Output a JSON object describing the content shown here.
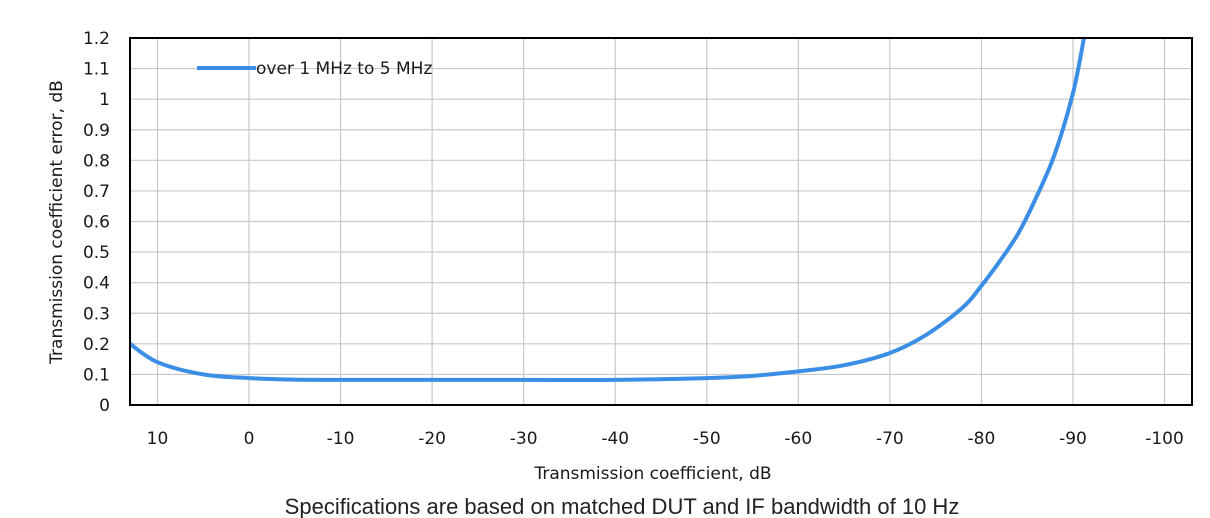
{
  "chart_data": {
    "type": "line",
    "xlabel": "Transmission coefficient, dB",
    "ylabel": "Transmission coefficient error, dB",
    "xlim": [
      13,
      -103
    ],
    "ylim": [
      0,
      1.2
    ],
    "xticks": [
      10,
      0,
      -10,
      -20,
      -30,
      -40,
      -50,
      -60,
      -70,
      -80,
      -90,
      -100
    ],
    "xtick_labels": [
      "10",
      "0",
      "-10",
      "-20",
      "-30",
      "-40",
      "-50",
      "-60",
      "-70",
      "-80",
      "-90",
      "-100"
    ],
    "yticks": [
      0,
      0.1,
      0.2,
      0.3,
      0.4,
      0.5,
      0.6,
      0.7,
      0.8,
      0.9,
      1,
      1.1,
      1.2
    ],
    "ytick_labels": [
      "0",
      "0.1",
      "0.2",
      "0.3",
      "0.4",
      "0.5",
      "0.6",
      "0.7",
      "0.8",
      "0.9",
      "1",
      "1.1",
      "1.2"
    ],
    "grid": true,
    "legend_position": "top-left",
    "series": [
      {
        "name": "over 1 MHz to 5 MHz",
        "color": "#3a8ee6",
        "x": [
          13,
          10,
          5,
          0,
          -5,
          -10,
          -20,
          -30,
          -40,
          -50,
          -55,
          -60,
          -65,
          -70,
          -74,
          -78,
          -80,
          -82,
          -84,
          -86,
          -88,
          -90,
          -91.2
        ],
        "y": [
          0.2,
          0.14,
          0.1,
          0.088,
          0.083,
          0.082,
          0.082,
          0.082,
          0.082,
          0.088,
          0.095,
          0.11,
          0.13,
          0.17,
          0.23,
          0.32,
          0.39,
          0.47,
          0.56,
          0.68,
          0.82,
          1.02,
          1.2
        ]
      }
    ]
  },
  "caption": "Specifications are based on matched DUT and IF bandwidth of 10 Hz"
}
